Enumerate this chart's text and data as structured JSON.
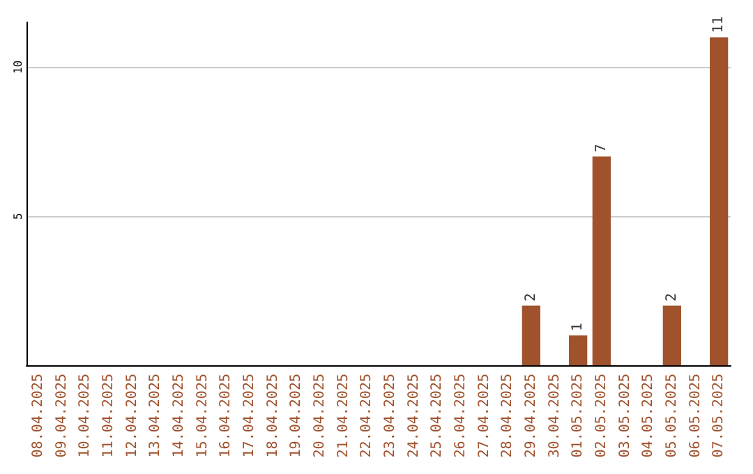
{
  "chart_data": {
    "type": "bar",
    "categories": [
      "08.04.2025",
      "09.04.2025",
      "10.04.2025",
      "11.04.2025",
      "12.04.2025",
      "13.04.2025",
      "14.04.2025",
      "15.04.2025",
      "16.04.2025",
      "17.04.2025",
      "18.04.2025",
      "19.04.2025",
      "20.04.2025",
      "21.04.2025",
      "22.04.2025",
      "23.04.2025",
      "24.04.2025",
      "25.04.2025",
      "26.04.2025",
      "27.04.2025",
      "28.04.2025",
      "29.04.2025",
      "30.04.2025",
      "01.05.2025",
      "02.05.2025",
      "03.05.2025",
      "04.05.2025",
      "05.05.2025",
      "06.05.2025",
      "07.05.2025"
    ],
    "values": [
      0,
      0,
      0,
      0,
      0,
      0,
      0,
      0,
      0,
      0,
      0,
      0,
      0,
      0,
      0,
      0,
      0,
      0,
      0,
      0,
      0,
      2,
      0,
      1,
      7,
      0,
      0,
      2,
      0,
      11
    ],
    "value_labels": [
      null,
      null,
      null,
      null,
      null,
      null,
      null,
      null,
      null,
      null,
      null,
      null,
      null,
      null,
      null,
      null,
      null,
      null,
      null,
      null,
      null,
      "2",
      null,
      "1",
      "7",
      null,
      null,
      "2",
      null,
      "11"
    ],
    "color": "#a0522d",
    "ylim": [
      0,
      11.5
    ],
    "yticks": [
      5,
      10
    ],
    "grid": "y",
    "legend": false
  }
}
